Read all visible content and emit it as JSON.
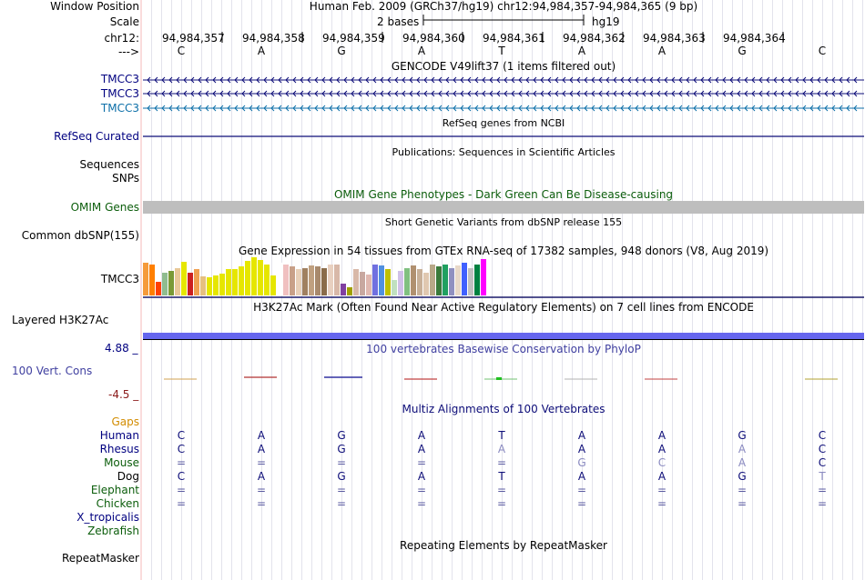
{
  "position": {
    "window_label": "Window Position",
    "title": "Human Feb. 2009 (GRCh37/hg19)   chr12:94,984,357-94,984,365 (9 bp)",
    "scale_label": "Scale",
    "scale_text": "2 bases",
    "assembly": "hg19",
    "chrom_label": "chr12:",
    "coords": [
      "94,984,357",
      "94,984,358",
      "94,984,359",
      "94,984,360",
      "94,984,361",
      "94,984,362",
      "94,984,363",
      "94,984,364"
    ],
    "arrow_label": "--->",
    "bases": [
      "C",
      "A",
      "G",
      "A",
      "T",
      "A",
      "A",
      "G",
      "C"
    ]
  },
  "gencode": {
    "title": "GENCODE V49lift37 (1 items filtered out)",
    "labels": [
      "TMCC3",
      "TMCC3",
      "TMCC3"
    ]
  },
  "refseq": {
    "title": "RefSeq genes from NCBI",
    "label": "RefSeq Curated"
  },
  "publications": {
    "title": "Publications: Sequences in Scientific Articles",
    "labels": [
      "Sequences",
      "SNPs"
    ]
  },
  "omim": {
    "title": "OMIM Gene Phenotypes - Dark Green Can Be Disease-causing",
    "label": "OMIM Genes"
  },
  "dbsnp": {
    "title": "Short Genetic Variants from dbSNP release 155",
    "label": "Common dbSNP(155)"
  },
  "gtex": {
    "title": "Gene Expression in 54 tissues from GTEx RNA-seq of 17382 samples, 948 donors (V8, Aug 2019)",
    "label": "TMCC3",
    "levels": [
      0.85,
      0.8,
      0.35,
      0.6,
      0.65,
      0.72,
      0.88,
      0.6,
      0.7,
      0.5,
      0.48,
      0.52,
      0.58,
      0.68,
      0.7,
      0.75,
      0.9,
      1.0,
      0.92,
      0.82,
      0.52,
      0.85,
      0.8,
      0.76,
      0.7,
      0.72,
      0.78,
      0.75,
      0.72,
      0.82,
      0.8,
      0.32,
      0.22,
      0.7,
      0.62,
      0.55,
      0.82,
      0.78,
      0.7,
      0.4,
      0.65,
      0.72,
      0.78,
      0.7,
      0.6,
      0.8,
      0.75,
      0.82,
      0.72,
      0.78,
      0.85,
      0.72,
      0.8,
      0.95
    ],
    "colors": [
      "#f59a3a",
      "#ff7f00",
      "#ff4000",
      "#8fbc8f",
      "#7a9a36",
      "#e8c898",
      "#e6e600",
      "#cc2020",
      "#f0a050",
      "#e6c080",
      "#e6e600",
      "#e6e600",
      "#e6e600",
      "#e6e600",
      "#e6e600",
      "#e6e600",
      "#e6e600",
      "#e6e600",
      "#e6e600",
      "#e6e600",
      "#e6e600",
      "#ffffff",
      "#f0c0c0",
      "#c8a088",
      "#e8d0b8",
      "#a08060",
      "#c0a080",
      "#a8896c",
      "#8a6c4a",
      "#e8d0c0",
      "#d8b8a8",
      "#8040a0",
      "#a0a000",
      "#d8b8a8",
      "#c8a8a0",
      "#e0b8b0",
      "#7070e0",
      "#5090e0",
      "#c0c000",
      "#c0e0c0",
      "#d0c0e8",
      "#80c080",
      "#b09070",
      "#c8b098",
      "#e0c8b0",
      "#b8a888",
      "#3a7a3a",
      "#20a060",
      "#9090c0",
      "#e8d8c8",
      "#4060ff",
      "#c0c0c0",
      "#008040",
      "#ff00ff"
    ]
  },
  "h3k27ac": {
    "title": "H3K27Ac Mark (Often Found Near Active Regulatory Elements) on 7 cell lines from ENCODE",
    "label": "Layered H3K27Ac"
  },
  "phylop": {
    "title": "100 vertebrates Basewise Conservation by PhyloP",
    "label": "100 Vert. Cons",
    "max": "4.88 _",
    "min": "-4.5 _"
  },
  "multiz": {
    "title": "Multiz Alignments of 100 Vertebrates",
    "species": [
      "Gaps",
      "Human",
      "Rhesus",
      "Mouse",
      "Dog",
      "Elephant",
      "Chicken",
      "X_tropicalis",
      "Zebrafish"
    ],
    "rows": {
      "Human": [
        "C",
        "A",
        "G",
        "A",
        "T",
        "A",
        "A",
        "G",
        "C"
      ],
      "Rhesus": [
        "C",
        "A",
        "G",
        "A",
        "A",
        "A",
        "A",
        "A",
        "C"
      ],
      "Mouse": [
        "=",
        "=",
        "=",
        "=",
        "=",
        "G",
        "C",
        "A",
        "C"
      ],
      "Dog": [
        "C",
        "A",
        "G",
        "A",
        "T",
        "A",
        "A",
        "G",
        "T"
      ],
      "Elephant": [
        "=",
        "=",
        "=",
        "=",
        "=",
        "=",
        "=",
        "=",
        "="
      ],
      "Chicken": [
        "=",
        "=",
        "=",
        "=",
        "=",
        "=",
        "=",
        "=",
        "="
      ]
    },
    "gray_cells": {
      "Rhesus": [
        4,
        7
      ],
      "Mouse": [
        5,
        6,
        7
      ],
      "Dog": [
        8
      ]
    }
  },
  "repeatmasker": {
    "title": "Repeating Elements by RepeatMasker",
    "label": "RepeatMasker"
  }
}
